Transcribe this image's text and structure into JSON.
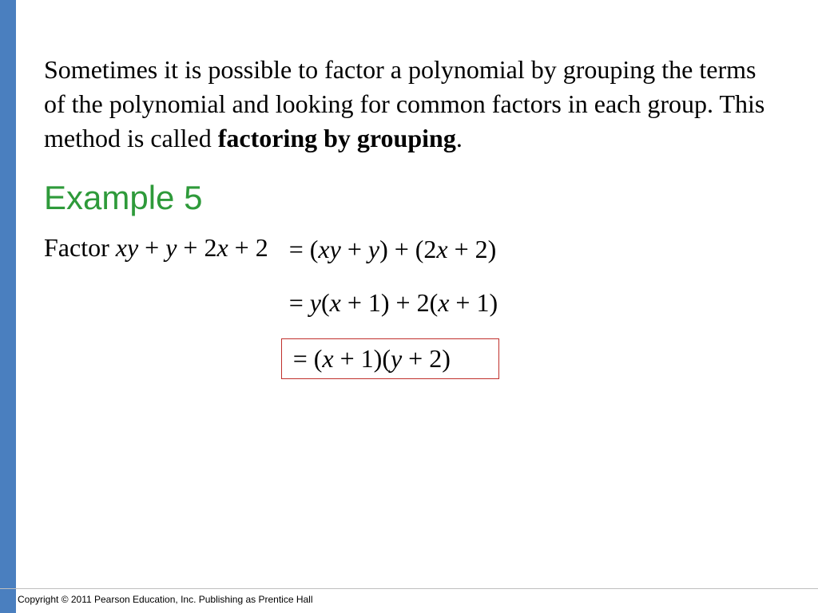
{
  "colors": {
    "left_bar": "#4a7fbf",
    "title": "#2e9a3a",
    "box_border": "#c0302c",
    "text": "#000000",
    "footer_rule": "#bfbfbf"
  },
  "intro": {
    "part1": "Sometimes it is possible to factor a polynomial by grouping the terms of the polynomial and looking for common factors in each group. This method is called ",
    "bold": "factoring by grouping",
    "part2": "."
  },
  "example_title": "Example 5",
  "problem": {
    "prefix": "Factor ",
    "expr_html": "<span class=\"mi\">xy</span> + <span class=\"mi\">y</span> + 2<span class=\"mi\">x</span> + 2"
  },
  "steps": [
    {
      "expr_html": "= (<span class=\"mi\">xy</span> + <span class=\"mi\">y</span>) + (2<span class=\"mi\">x</span> + 2)",
      "boxed": false
    },
    {
      "expr_html": "= <span class=\"mi\">y</span>(<span class=\"mi\">x</span> + 1) + 2(<span class=\"mi\">x</span> + 1)",
      "boxed": false
    },
    {
      "expr_html": "= (<span class=\"mi\">x</span> + 1)(<span class=\"mi\">y</span> + 2)",
      "boxed": true
    }
  ],
  "copyright": "Copyright © 2011 Pearson Education, Inc.  Publishing as Prentice Hall"
}
